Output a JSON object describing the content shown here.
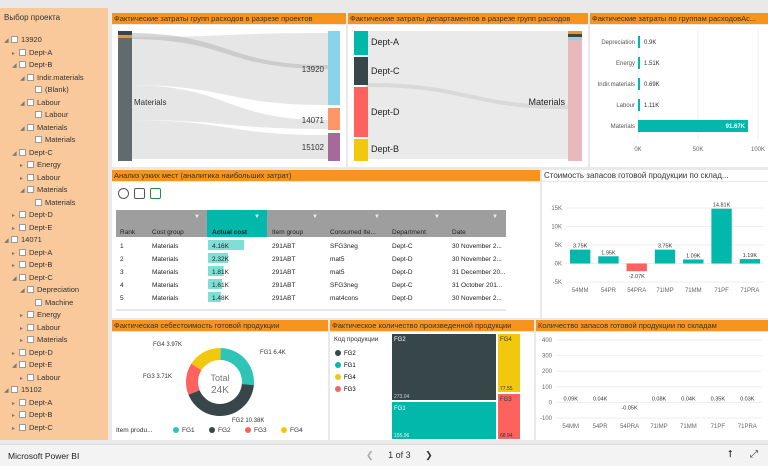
{
  "slicer": {
    "title": "Выбор проекта",
    "items": [
      {
        "label": "13920",
        "level": 0,
        "chev": "◢"
      },
      {
        "label": "Dept-A",
        "level": 1,
        "chev": "▸"
      },
      {
        "label": "Dept-B",
        "level": 1,
        "chev": "◢"
      },
      {
        "label": "Indir.materials",
        "level": 2,
        "chev": "◢"
      },
      {
        "label": "(Blank)",
        "level": 3,
        "chev": ""
      },
      {
        "label": "Labour",
        "level": 2,
        "chev": "◢"
      },
      {
        "label": "Labour",
        "level": 3,
        "chev": ""
      },
      {
        "label": "Materials",
        "level": 2,
        "chev": "◢"
      },
      {
        "label": "Materials",
        "level": 3,
        "chev": ""
      },
      {
        "label": "Dept-C",
        "level": 1,
        "chev": "◢"
      },
      {
        "label": "Energy",
        "level": 2,
        "chev": "▸"
      },
      {
        "label": "Labour",
        "level": 2,
        "chev": "▸"
      },
      {
        "label": "Materials",
        "level": 2,
        "chev": "◢"
      },
      {
        "label": "Materials",
        "level": 3,
        "chev": ""
      },
      {
        "label": "Dept-D",
        "level": 1,
        "chev": "▸"
      },
      {
        "label": "Dept-E",
        "level": 1,
        "chev": "▸"
      },
      {
        "label": "14071",
        "level": 0,
        "chev": "◢"
      },
      {
        "label": "Dept-A",
        "level": 1,
        "chev": "▸"
      },
      {
        "label": "Dept-B",
        "level": 1,
        "chev": "▸"
      },
      {
        "label": "Dept-C",
        "level": 1,
        "chev": "◢"
      },
      {
        "label": "Depreciation",
        "level": 2,
        "chev": "◢"
      },
      {
        "label": "Machine",
        "level": 3,
        "chev": ""
      },
      {
        "label": "Energy",
        "level": 2,
        "chev": "▸"
      },
      {
        "label": "Labour",
        "level": 2,
        "chev": "▸"
      },
      {
        "label": "Materials",
        "level": 2,
        "chev": "▸"
      },
      {
        "label": "Dept-D",
        "level": 1,
        "chev": "▸"
      },
      {
        "label": "Dept-E",
        "level": 1,
        "chev": "◢"
      },
      {
        "label": "Labour",
        "level": 2,
        "chev": "▸"
      },
      {
        "label": "15102",
        "level": 0,
        "chev": "◢"
      },
      {
        "label": "Dept-A",
        "level": 1,
        "chev": "▸"
      },
      {
        "label": "Dept-B",
        "level": 1,
        "chev": "▸"
      },
      {
        "label": "Dept-C",
        "level": 1,
        "chev": "▸"
      }
    ]
  },
  "headers": {
    "sankey1": "Фактические затраты групп расходов в разрезе проектов",
    "sankey2": "Фактические затраты департаментов в разрезе групп расходов",
    "bars_groups": "Фактические затраты по группам расходовАс...",
    "bottleneck": "Анализ узких мест (аналитика наибольших затрат)",
    "stock_value": "Стоимость запасов готовой продукции по склад...",
    "cost_donut": "Фактическая себестоимость  готовой продукции",
    "qty_tree": "Фактическое количество произведенной продукции",
    "stock_qty": "Количество запасов готовой продукции по складам"
  },
  "sankey1": {
    "left": "Materials",
    "right": [
      "13920",
      "14071",
      "15102"
    ]
  },
  "sankey2": {
    "left": [
      "Dept-A",
      "Dept-C",
      "Dept-D",
      "Dept-B"
    ],
    "right": "Materials"
  },
  "bars_groups": {
    "categories": [
      "Depreciation",
      "Energy",
      "Indir.materials",
      "Labour",
      "Materials"
    ],
    "values": [
      "0.9K",
      "1.51K",
      "0.69K",
      "1.11K",
      "91.67K"
    ],
    "axis": [
      "0K",
      "50K",
      "100K"
    ]
  },
  "table": {
    "columns": [
      "Rank",
      "Cost group",
      "Actual cost",
      "Item group",
      "Consumed Ite...",
      "Department",
      "Date"
    ],
    "rows": [
      [
        "1",
        "Materials",
        "4.16K",
        "291ABT",
        "SFG3neg",
        "Dept-C",
        "30 November 2..."
      ],
      [
        "2",
        "Materials",
        "2.32K",
        "291ABT",
        "mat5",
        "Dept-D",
        "30 November 2..."
      ],
      [
        "3",
        "Materials",
        "1.81K",
        "291ABT",
        "mat5",
        "Dept-D",
        "31 December 20..."
      ],
      [
        "4",
        "Materials",
        "1.61K",
        "291ABT",
        "SFG3neg",
        "Dept-C",
        "31 October 201..."
      ],
      [
        "5",
        "Materials",
        "1.48K",
        "291ABT",
        "mat4cons",
        "Dept-D",
        "30 November 2..."
      ]
    ]
  },
  "chart_data": [
    {
      "type": "bar",
      "title": "Фактические затраты по группам расходовАс...",
      "categories": [
        "Depreciation",
        "Energy",
        "Indir.materials",
        "Labour",
        "Materials"
      ],
      "values": [
        0.9,
        1.51,
        0.69,
        1.11,
        91.67
      ],
      "unit": "K",
      "xlim": [
        0,
        100
      ]
    },
    {
      "type": "bar",
      "title": "Стоимость запасов готовой продукции по склад...",
      "categories": [
        "54MM",
        "54PR",
        "54PRA",
        "71IMP",
        "71MM",
        "71PF",
        "71PRA"
      ],
      "values": [
        3.75,
        1.95,
        -2.07,
        3.75,
        1.09,
        14.81,
        1.19
      ],
      "labels": [
        "3.75K",
        "1.95K",
        "-2.07K",
        "3.75K",
        "1.09K",
        "14.81K",
        "1.19K"
      ],
      "ylim": [
        -5,
        15
      ],
      "ticks": [
        "15K",
        "10K",
        "5K",
        "0K",
        "-5K"
      ]
    },
    {
      "type": "pie",
      "title": "Фактическая себестоимость  готовой продукции",
      "center_label": "Total",
      "center_value": "24K",
      "legend_title": "Item produ...",
      "slices": [
        {
          "name": "FG1",
          "value": 6.4,
          "label": "FG1 6.4K",
          "color": "#2ec4b6"
        },
        {
          "name": "FG2",
          "value": 10.38,
          "label": "FG2 10.38K",
          "color": "#374649"
        },
        {
          "name": "FG3",
          "value": 3.71,
          "label": "FG3 3.71K",
          "color": "#fd625e"
        },
        {
          "name": "FG4",
          "value": 3.97,
          "label": "FG4 3.97K",
          "color": "#f2c80f"
        }
      ]
    },
    {
      "type": "treemap",
      "title": "Фактическое количество произведенной продукции",
      "legend_title": "Код продукции",
      "legend": [
        "FG2",
        "FG1",
        "FG4",
        "FG3"
      ],
      "cells": [
        {
          "name": "FG2",
          "value": "273.04",
          "color": "#374649"
        },
        {
          "name": "FG1",
          "value": "155.96",
          "color": "#01b8aa"
        },
        {
          "name": "FG4",
          "value": "77.55",
          "color": "#f2c80f"
        },
        {
          "name": "FG3",
          "value": "68.94",
          "color": "#fd625e"
        }
      ]
    },
    {
      "type": "bar",
      "title": "Количество запасов готовой продукции по складам",
      "categories": [
        "54MM",
        "54PR",
        "54PRA",
        "71IMP",
        "71MM",
        "71PF",
        "71PRA"
      ],
      "values": [
        0.09,
        0.04,
        -0.05,
        0.08,
        0.04,
        0.35,
        0.03
      ],
      "labels": [
        "0.09K",
        "0.04K",
        "-0.05K",
        "0.08K",
        "0.04K",
        "0.35K",
        "0.03K"
      ],
      "ylim": [
        -100,
        400
      ],
      "ticks": [
        "400",
        "300",
        "200",
        "100",
        "0",
        "-100"
      ]
    }
  ],
  "bottombar": {
    "brand": "Microsoft Power BI",
    "page": "1 of 3"
  },
  "colors": {
    "accent": "#f7941d",
    "teal": "#01b8aa",
    "dark": "#374649",
    "red": "#fd625e",
    "yellow": "#f2c80f"
  }
}
